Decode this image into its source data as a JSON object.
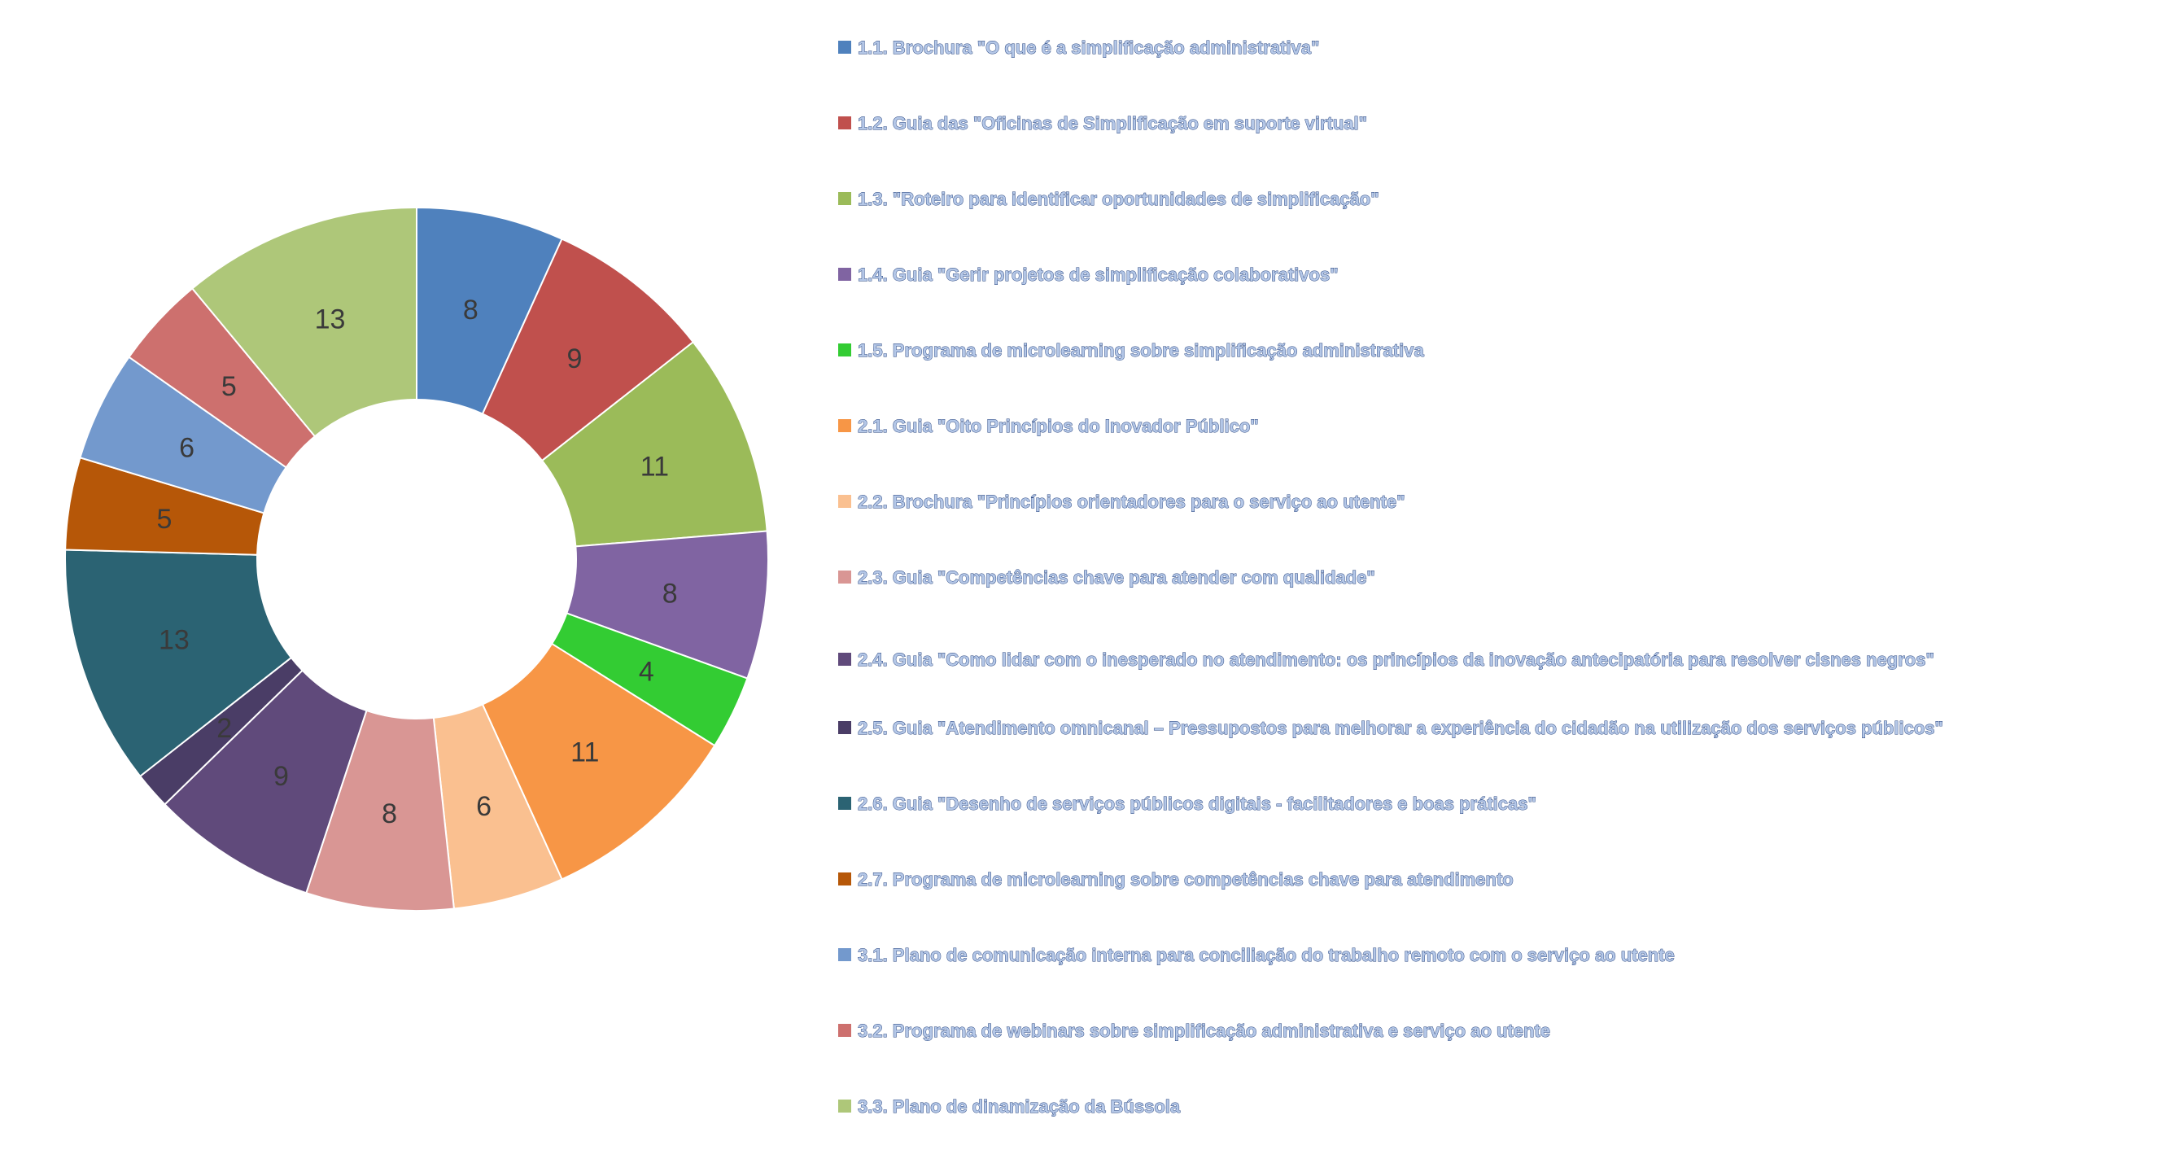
{
  "chart_data": {
    "type": "pie",
    "variant": "donut",
    "title": "",
    "legend_position": "right",
    "categories": [
      "1.1. Brochura \"O que é a simplificação administrativa\"",
      "1.2. Guia das \"Oficinas de Simplificação em suporte virtual\"",
      "1.3. \"Roteiro para identificar oportunidades de simplificação\"",
      "1.4. Guia \"Gerir projetos de simplificação colaborativos\"",
      "1.5. Programa de microlearning sobre simplificação administrativa",
      "2.1. Guia \"Oito Princípios do Inovador Público\"",
      "2.2. Brochura \"Princípios orientadores para o serviço ao utente\"",
      "2.3. Guia \"Competências chave para atender com qualidade\"",
      "2.4. Guia \"Como lidar com o inesperado no atendimento: os princípios da inovação antecipatória para resolver cisnes negros\"",
      "2.5. Guia \"Atendimento omnicanal – Pressupostos para melhorar a experiência do cidadão na utilização dos serviços públicos\"",
      "2.6. Guia \"Desenho de serviços públicos digitais - facilitadores e boas práticas\"",
      "2.7. Programa de microlearning sobre competências chave para atendimento",
      "3.1. Plano de comunicação interna para conciliação do trabalho remoto com o serviço ao utente",
      "3.2. Programa de webinars sobre simplificação administrativa e serviço ao utente",
      "3.3. Plano de dinamização da Bússola"
    ],
    "values": [
      8,
      9,
      11,
      8,
      4,
      11,
      6,
      8,
      9,
      2,
      13,
      5,
      6,
      5,
      13
    ],
    "value_labels": [
      "8",
      "9",
      "11",
      "8",
      "4",
      "11",
      "6",
      "8",
      "9",
      "2",
      "13",
      "5",
      "6",
      "5",
      "13"
    ],
    "colors": [
      "#4f81bd",
      "#c0504d",
      "#9bbb59",
      "#8064a2",
      "#33cc33",
      "#f79646",
      "#fac090",
      "#d99694",
      "#604a7b",
      "#4a3d66",
      "#2b6373",
      "#b65708",
      "#7399cd",
      "#cd706e",
      "#aec779"
    ]
  }
}
